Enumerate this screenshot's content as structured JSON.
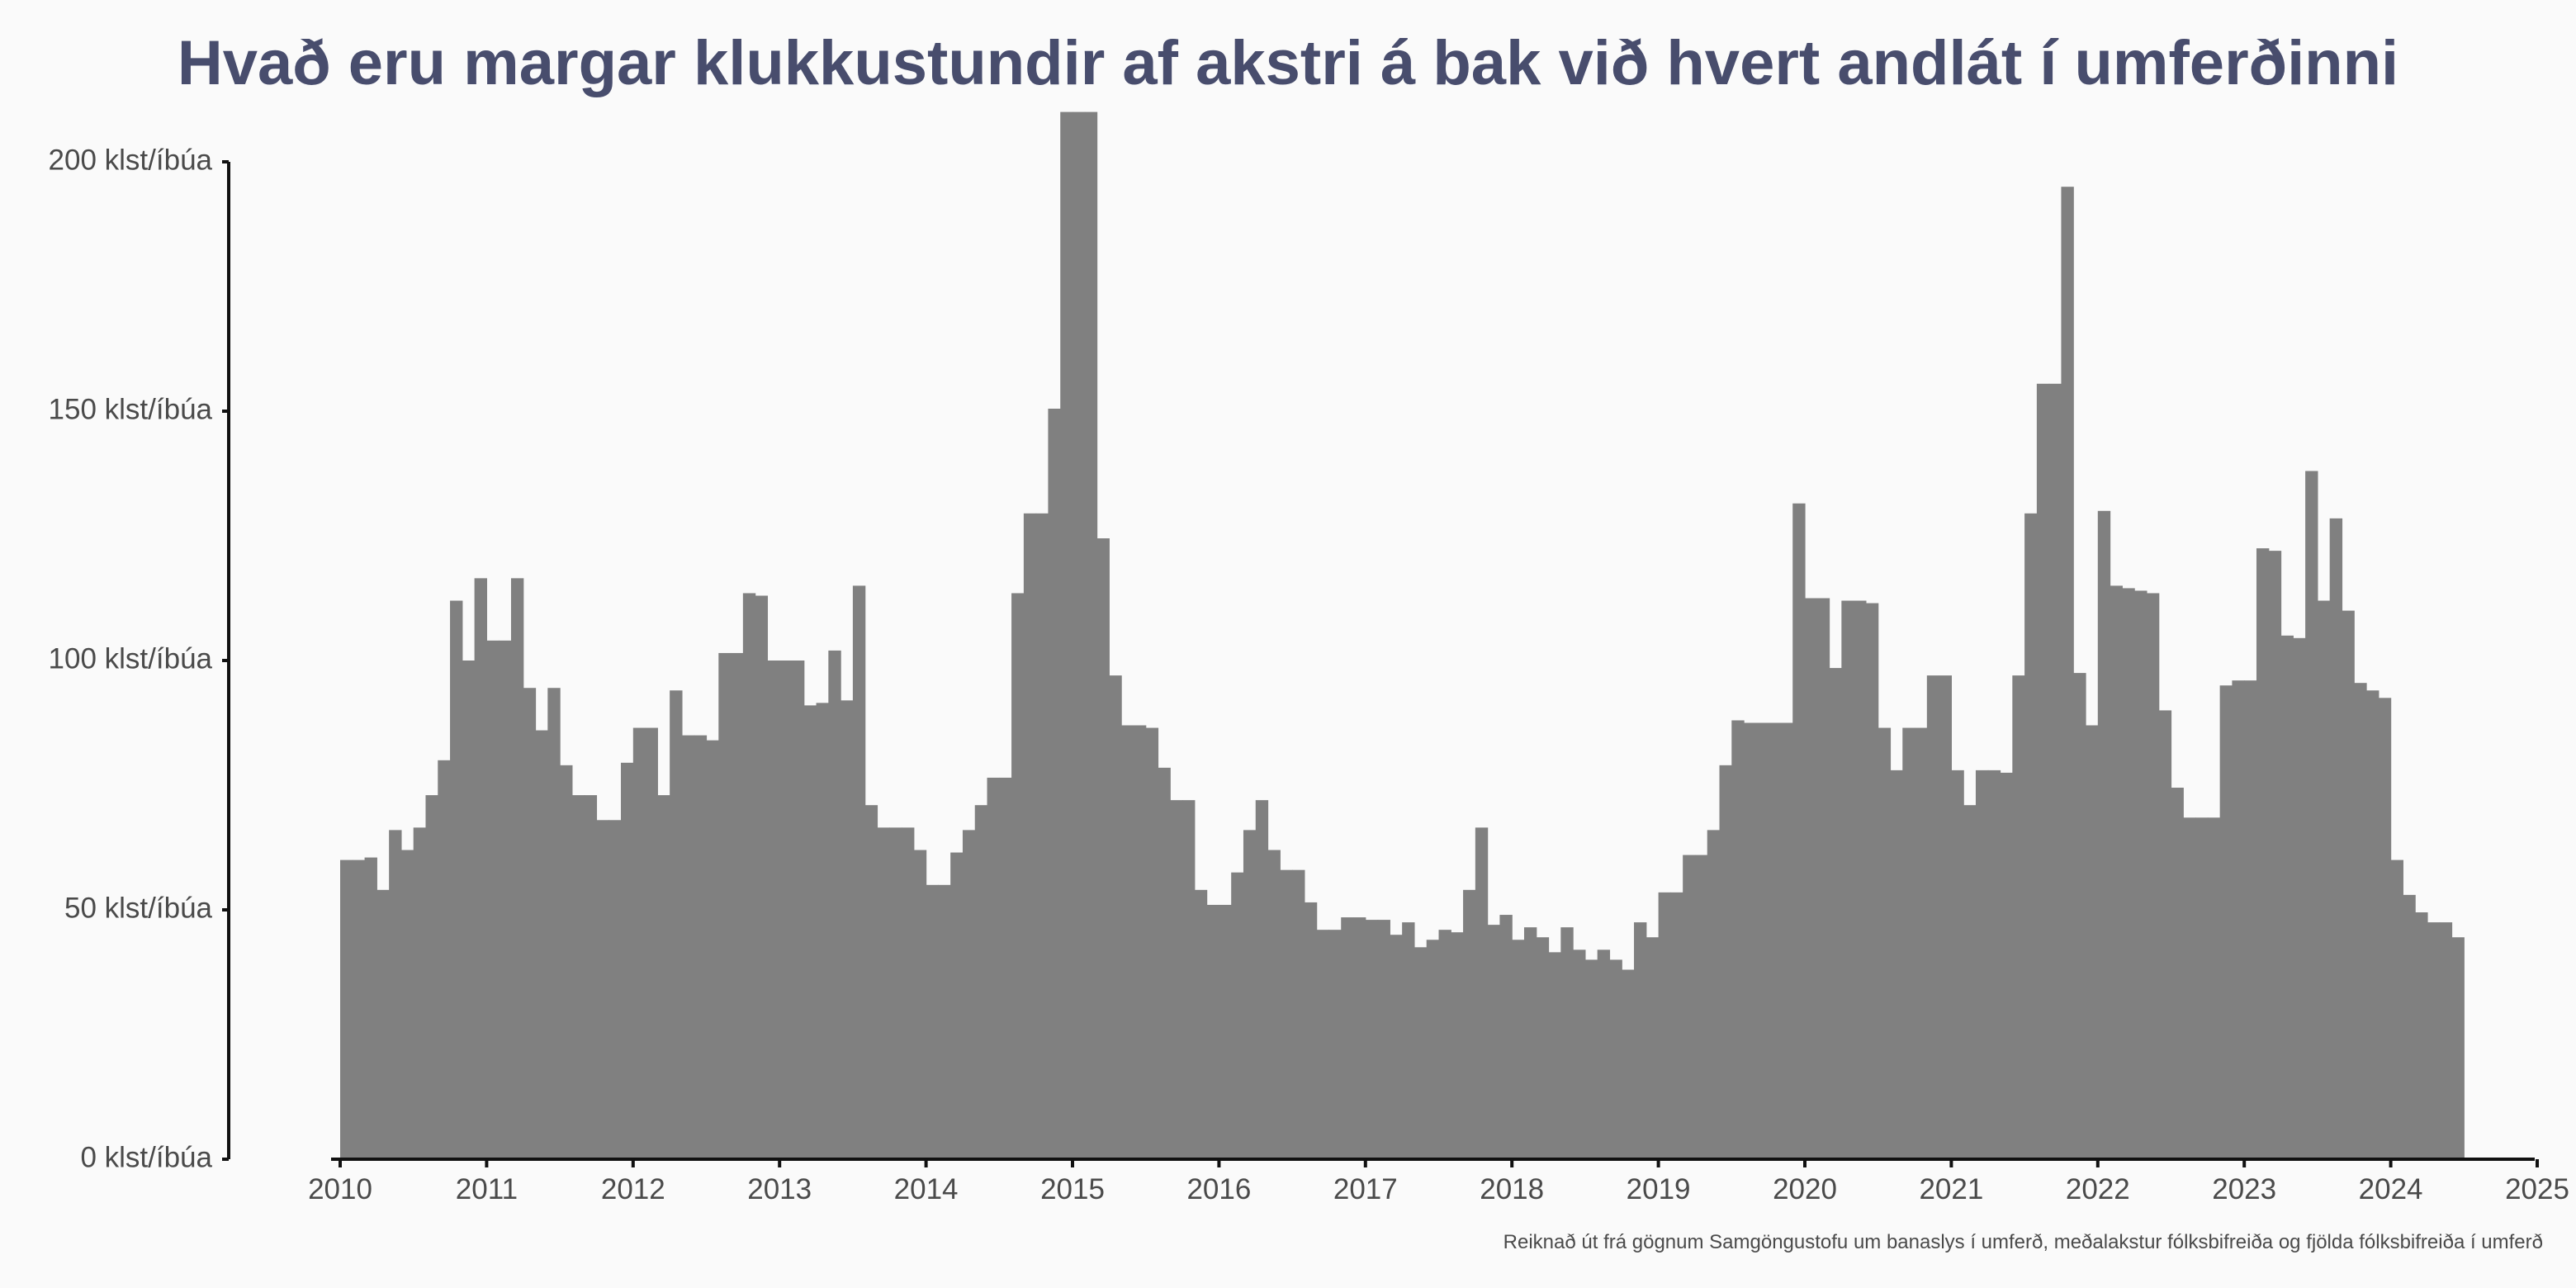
{
  "chart_data": {
    "type": "bar",
    "title": "Hvað eru margar klukkustundir af akstri á bak við hvert andlát í umferðinni",
    "caption": "Reiknað út frá gögnum Samgöngustofu um banaslys í umferð, meðalakstur fólksbifreiða og fjölda fólksbifreiða í umferð",
    "xlabel": "",
    "ylabel": "",
    "y_unit_suffix": " klst/íbúa",
    "ylim": [
      0,
      210
    ],
    "xlim": [
      2009.9,
      2025
    ],
    "x_ticks": [
      "2010",
      "2011",
      "2012",
      "2013",
      "2014",
      "2015",
      "2016",
      "2017",
      "2018",
      "2019",
      "2020",
      "2021",
      "2022",
      "2023",
      "2024",
      "2025"
    ],
    "y_ticks": [
      "0 klst/íbúa",
      "50 klst/íbúa",
      "100 klst/íbúa",
      "150 klst/íbúa",
      "200 klst/íbúa"
    ],
    "y_tick_values": [
      0,
      50,
      100,
      150,
      200
    ],
    "grid": false,
    "bar_color": "#808080",
    "x_start": 2010,
    "x_step_months": 1,
    "values": [
      60,
      60,
      60.5,
      54,
      66,
      62,
      66.5,
      73,
      80,
      112,
      100,
      116.5,
      104,
      104,
      116.5,
      94.5,
      86,
      94.5,
      79,
      73,
      73,
      68,
      68,
      79.5,
      86.5,
      86.5,
      73,
      94,
      85,
      85,
      84,
      101.5,
      101.5,
      113.5,
      113,
      100,
      100,
      100,
      91,
      91.5,
      102,
      92,
      115,
      71,
      66.5,
      66.5,
      66.5,
      62,
      55,
      55,
      61.5,
      66,
      71,
      76.5,
      76.5,
      113.5,
      129.5,
      129.5,
      150.5,
      210,
      210,
      210,
      124.5,
      97,
      87,
      87,
      86.5,
      78.5,
      72,
      72,
      54,
      51,
      51,
      57.5,
      66,
      72,
      62,
      58,
      58,
      51.5,
      46,
      46,
      48.5,
      48.5,
      48,
      48,
      45,
      47.5,
      42.5,
      44,
      46,
      45.5,
      54,
      66.5,
      47,
      49,
      44,
      46.5,
      44.5,
      41.5,
      46.5,
      42,
      40,
      42,
      40,
      38,
      47.5,
      44.5,
      53.5,
      53.5,
      61,
      61,
      66,
      79,
      88,
      87.5,
      87.5,
      87.5,
      87.5,
      131.5,
      112.5,
      112.5,
      98.5,
      112,
      112,
      111.5,
      86.5,
      78,
      86.5,
      86.5,
      97,
      97,
      78,
      71,
      78,
      78,
      77.5,
      97,
      129.5,
      155.5,
      155.5,
      195,
      97.5,
      87,
      130,
      115,
      114.5,
      114,
      113.5,
      90,
      74.5,
      68.5,
      68.5,
      68.5,
      95,
      96,
      96,
      122.5,
      122,
      105,
      104.5,
      138,
      112,
      128.5,
      110,
      95.5,
      94,
      92.5,
      60,
      53,
      49.5,
      47.5,
      47.5,
      44.5
    ]
  }
}
